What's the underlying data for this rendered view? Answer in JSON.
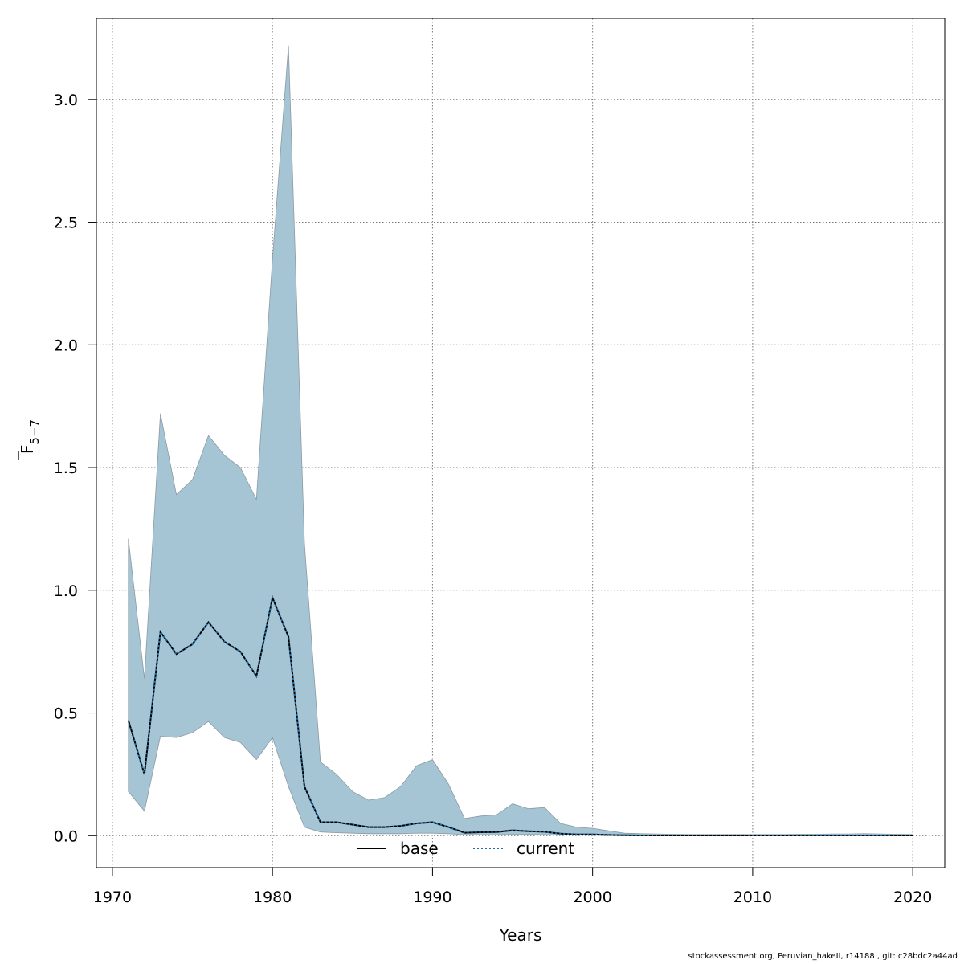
{
  "chart_data": {
    "type": "area",
    "title": "",
    "xlabel": "Years",
    "ylabel_main": "F",
    "ylabel_sub": "5−7",
    "xlim": [
      1969,
      2022
    ],
    "ylim": [
      -0.13,
      3.33
    ],
    "x_ticks": [
      1970,
      1980,
      1990,
      2000,
      2010,
      2020
    ],
    "y_ticks": [
      0.0,
      0.5,
      1.0,
      1.5,
      2.0,
      2.5,
      3.0
    ],
    "y_tick_labels": [
      "0.0",
      "0.5",
      "1.0",
      "1.5",
      "2.0",
      "2.5",
      "3.0"
    ],
    "grid": true,
    "legend_position": "bottom-center",
    "band": {
      "color": "#a5c4d4",
      "years": [
        1971,
        1972,
        1973,
        1974,
        1975,
        1976,
        1977,
        1978,
        1979,
        1980,
        1981,
        1982,
        1983,
        1984,
        1985,
        1986,
        1987,
        1988,
        1989,
        1990,
        1991,
        1992,
        1993,
        1994,
        1995,
        1996,
        1997,
        1998,
        1999,
        2000,
        2001,
        2002,
        2003,
        2004,
        2005,
        2006,
        2007,
        2008,
        2009,
        2010,
        2011,
        2012,
        2013,
        2014,
        2015,
        2016,
        2017,
        2018,
        2019,
        2020
      ],
      "upper": [
        1.21,
        0.64,
        1.72,
        1.39,
        1.45,
        1.63,
        1.55,
        1.5,
        1.37,
        2.35,
        3.22,
        1.19,
        0.3,
        0.25,
        0.18,
        0.145,
        0.155,
        0.2,
        0.285,
        0.31,
        0.21,
        0.07,
        0.08,
        0.085,
        0.13,
        0.11,
        0.115,
        0.05,
        0.035,
        0.03,
        0.02,
        0.01,
        0.008,
        0.007,
        0.006,
        0.005,
        0.005,
        0.005,
        0.005,
        0.005,
        0.005,
        0.005,
        0.006,
        0.006,
        0.007,
        0.007,
        0.008,
        0.007,
        0.006,
        0.005
      ],
      "lower": [
        0.18,
        0.1,
        0.405,
        0.4,
        0.42,
        0.465,
        0.4,
        0.38,
        0.31,
        0.4,
        0.2,
        0.035,
        0.015,
        0.012,
        0.01,
        0.008,
        0.008,
        0.008,
        0.01,
        0.01,
        0.008,
        0.004,
        0.004,
        0.004,
        0.005,
        0.005,
        0.004,
        0.003,
        0.002,
        0.002,
        0.001,
        0.001,
        0.001,
        0.001,
        0.001,
        0.001,
        0.001,
        0.001,
        0.001,
        0.001,
        0.001,
        0.001,
        0.001,
        0.001,
        0.001,
        0.001,
        0.001,
        0.001,
        0.001,
        0.001
      ]
    },
    "series": [
      {
        "name": "base",
        "style": "solid",
        "color": "#000000",
        "years": [
          1971,
          1972,
          1973,
          1974,
          1975,
          1976,
          1977,
          1978,
          1979,
          1980,
          1981,
          1982,
          1983,
          1984,
          1985,
          1986,
          1987,
          1988,
          1989,
          1990,
          1991,
          1992,
          1993,
          1994,
          1995,
          1996,
          1997,
          1998,
          1999,
          2000,
          2001,
          2002,
          2003,
          2004,
          2005,
          2006,
          2007,
          2008,
          2009,
          2010,
          2011,
          2012,
          2013,
          2014,
          2015,
          2016,
          2017,
          2018,
          2019,
          2020
        ],
        "values": [
          0.47,
          0.25,
          0.83,
          0.74,
          0.78,
          0.87,
          0.79,
          0.75,
          0.65,
          0.97,
          0.81,
          0.2,
          0.055,
          0.055,
          0.045,
          0.035,
          0.035,
          0.04,
          0.05,
          0.055,
          0.035,
          0.012,
          0.014,
          0.015,
          0.022,
          0.018,
          0.016,
          0.008,
          0.005,
          0.005,
          0.003,
          0.002,
          0.001,
          0.001,
          0.001,
          0.001,
          0.001,
          0.001,
          0.001,
          0.001,
          0.001,
          0.001,
          0.001,
          0.001,
          0.001,
          0.001,
          0.001,
          0.001,
          0.001,
          0.001
        ]
      },
      {
        "name": "current",
        "style": "dotted",
        "color": "#1f6fa8",
        "years": [
          1971,
          1972,
          1973,
          1974,
          1975,
          1976,
          1977,
          1978,
          1979,
          1980,
          1981,
          1982,
          1983,
          1984,
          1985,
          1986,
          1987,
          1988,
          1989,
          1990,
          1991,
          1992,
          1993,
          1994,
          1995,
          1996,
          1997,
          1998,
          1999,
          2000,
          2001,
          2002,
          2003,
          2004,
          2005,
          2006,
          2007,
          2008,
          2009,
          2010,
          2011,
          2012,
          2013,
          2014,
          2015,
          2016,
          2017,
          2018,
          2019,
          2020
        ],
        "values": [
          0.47,
          0.25,
          0.83,
          0.74,
          0.78,
          0.87,
          0.79,
          0.75,
          0.65,
          0.97,
          0.81,
          0.2,
          0.055,
          0.055,
          0.045,
          0.035,
          0.035,
          0.04,
          0.05,
          0.055,
          0.035,
          0.012,
          0.014,
          0.015,
          0.022,
          0.018,
          0.016,
          0.008,
          0.005,
          0.005,
          0.003,
          0.002,
          0.001,
          0.001,
          0.001,
          0.001,
          0.001,
          0.001,
          0.001,
          0.001,
          0.001,
          0.001,
          0.001,
          0.001,
          0.001,
          0.001,
          0.001,
          0.001,
          0.001,
          0.001
        ]
      }
    ]
  },
  "footer": {
    "text": "stockassessment.org, Peruvian_hakeII, r14188 , git: c28bdc2a44ad"
  }
}
